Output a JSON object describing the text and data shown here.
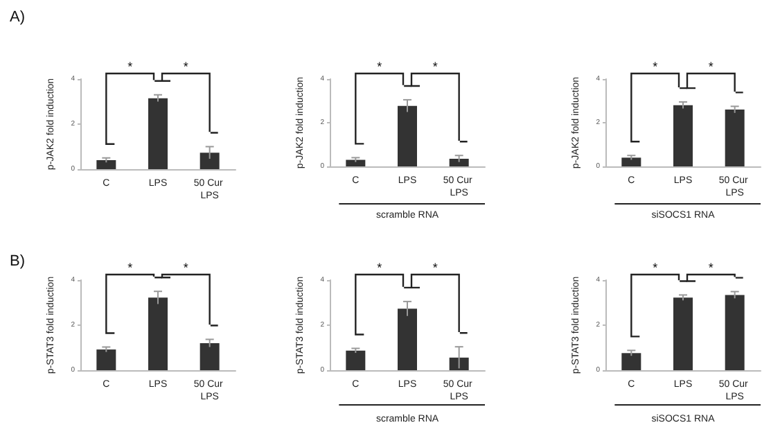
{
  "chart_data": [
    {
      "type": "bar",
      "title": "A)",
      "ylabel": "p-JAK2 fold induction",
      "categories": [
        "C",
        "LPS",
        "50 Cur LPS"
      ],
      "ylim": [
        0,
        4
      ],
      "yticks": [
        0,
        2,
        4
      ],
      "annotations": [
        "*",
        "*"
      ],
      "series": [
        {
          "color": "#333333",
          "values": [
            0.4,
            3.15,
            0.73
          ],
          "errors": [
            0.1,
            0.15,
            0.27
          ]
        }
      ]
    },
    {
      "type": "bar",
      "ylabel": "p-JAK2 fold induction",
      "xlabel": "scramble RNA",
      "categories": [
        "C",
        "LPS",
        "50 Cur LPS"
      ],
      "ylim": [
        0,
        4
      ],
      "yticks": [
        0,
        2,
        4
      ],
      "annotations": [
        "*",
        "*"
      ],
      "series": [
        {
          "color": "#333333",
          "values": [
            0.3,
            2.77,
            0.35
          ],
          "errors": [
            0.1,
            0.28,
            0.15
          ]
        }
      ]
    },
    {
      "type": "bar",
      "ylabel": "p-JAK2 fold induction",
      "xlabel": "siSOCS1 RNA",
      "categories": [
        "C",
        "LPS",
        "50 Cur LPS"
      ],
      "ylim": [
        0,
        4
      ],
      "yticks": [
        0,
        2,
        4
      ],
      "annotations": [
        "*",
        "*"
      ],
      "series": [
        {
          "color": "#333333",
          "values": [
            0.4,
            2.8,
            2.6
          ],
          "errors": [
            0.1,
            0.15,
            0.15
          ]
        }
      ]
    },
    {
      "type": "bar",
      "title": "B)",
      "ylabel": "p-STAT3 fold induction",
      "categories": [
        "C",
        "LPS",
        "50 Cur LPS"
      ],
      "ylim": [
        0,
        4
      ],
      "yticks": [
        0,
        2,
        4
      ],
      "annotations": [
        "*",
        "*"
      ],
      "series": [
        {
          "color": "#333333",
          "values": [
            0.92,
            3.22,
            1.2
          ],
          "errors": [
            0.11,
            0.28,
            0.17
          ]
        }
      ]
    },
    {
      "type": "bar",
      "ylabel": "p-STAT3 fold induction",
      "xlabel": "scramble RNA",
      "categories": [
        "C",
        "LPS",
        "50 Cur LPS"
      ],
      "ylim": [
        0,
        4
      ],
      "yticks": [
        0,
        2,
        4
      ],
      "annotations": [
        "*",
        "*"
      ],
      "series": [
        {
          "color": "#333333",
          "values": [
            0.87,
            2.73,
            0.56
          ],
          "errors": [
            0.1,
            0.32,
            0.48
          ]
        }
      ]
    },
    {
      "type": "bar",
      "ylabel": "p-STAT3 fold induction",
      "xlabel": "siSOCS1 RNA",
      "categories": [
        "C",
        "LPS",
        "50 Cur LPS"
      ],
      "ylim": [
        0,
        4
      ],
      "yticks": [
        0,
        2,
        4
      ],
      "annotations": [
        "*",
        "*"
      ],
      "series": [
        {
          "color": "#333333",
          "values": [
            0.76,
            3.22,
            3.34
          ],
          "errors": [
            0.12,
            0.12,
            0.15
          ]
        }
      ]
    }
  ]
}
